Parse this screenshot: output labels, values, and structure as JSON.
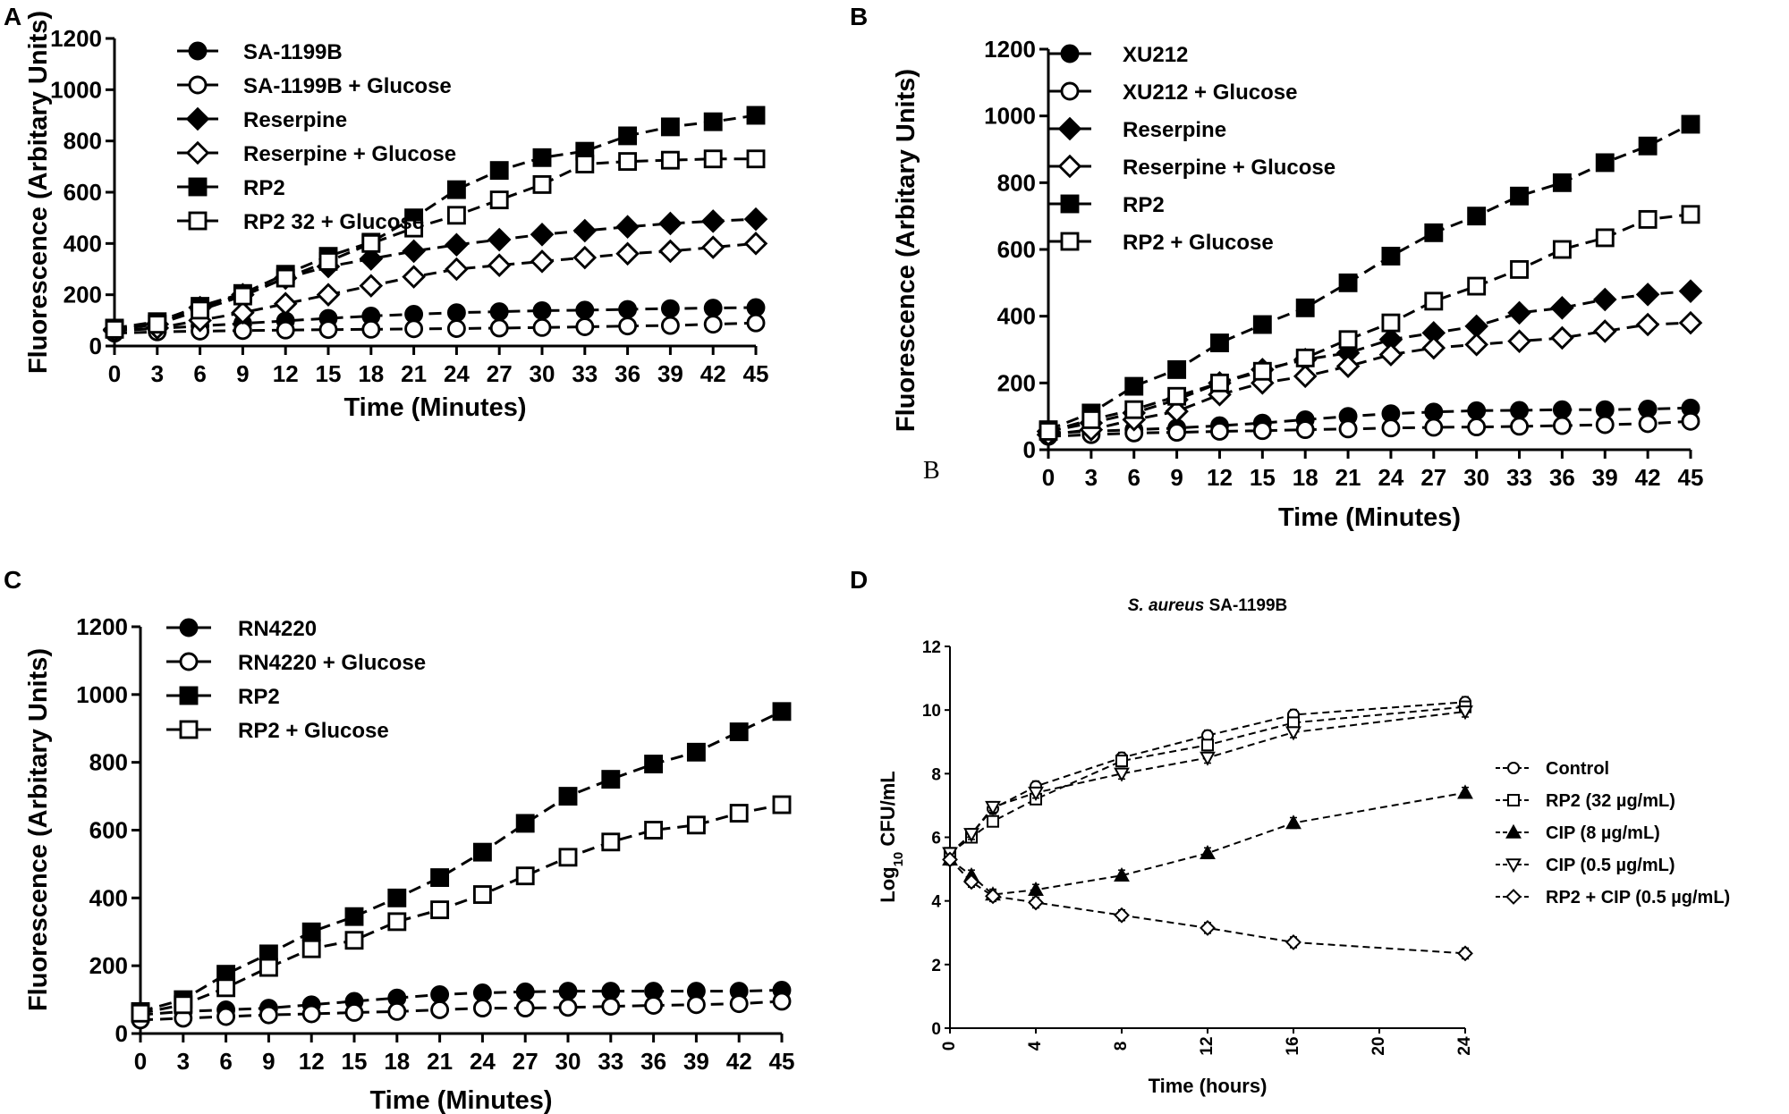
{
  "figure": {
    "panels": [
      "A",
      "B",
      "C",
      "D"
    ],
    "stray_mark_B": "B"
  },
  "chart_data": [
    {
      "panel": "A",
      "type": "line",
      "title": "",
      "xlabel": "Time (Minutes)",
      "ylabel": "Fluorescence (Arbitary Units)",
      "xlim": [
        0,
        45
      ],
      "ylim": [
        0,
        1200
      ],
      "xticks": [
        0,
        3,
        6,
        9,
        12,
        15,
        18,
        21,
        24,
        27,
        30,
        33,
        36,
        39,
        42,
        45
      ],
      "yticks": [
        0,
        200,
        400,
        600,
        800,
        1000,
        1200
      ],
      "x": [
        0,
        3,
        6,
        9,
        12,
        15,
        18,
        21,
        24,
        27,
        30,
        33,
        36,
        39,
        42,
        45
      ],
      "legend_position": "top-left",
      "series": [
        {
          "name": "SA-1199B",
          "marker": "circle",
          "fill": "filled",
          "values": [
            60,
            68,
            78,
            88,
            98,
            108,
            117,
            124,
            130,
            134,
            138,
            140,
            143,
            146,
            148,
            150
          ]
        },
        {
          "name": "SA-1199B + Glucose",
          "marker": "circle",
          "fill": "open",
          "values": [
            50,
            55,
            58,
            60,
            62,
            64,
            65,
            67,
            68,
            70,
            72,
            75,
            78,
            80,
            85,
            90
          ]
        },
        {
          "name": "Reserpine",
          "marker": "diamond",
          "fill": "filled",
          "values": [
            65,
            85,
            150,
            200,
            265,
            310,
            340,
            370,
            395,
            415,
            435,
            450,
            465,
            478,
            487,
            495
          ]
        },
        {
          "name": "Reserpine + Glucose",
          "marker": "diamond",
          "fill": "open",
          "values": [
            60,
            70,
            100,
            130,
            165,
            200,
            235,
            270,
            300,
            315,
            330,
            345,
            360,
            370,
            385,
            400
          ]
        },
        {
          "name": "RP2",
          "marker": "square",
          "fill": "filled",
          "values": [
            70,
            95,
            155,
            205,
            280,
            350,
            405,
            500,
            610,
            685,
            735,
            760,
            820,
            855,
            875,
            900
          ]
        },
        {
          "name": "RP2 32 + Glucose",
          "marker": "square",
          "fill": "open",
          "values": [
            65,
            85,
            140,
            195,
            265,
            330,
            400,
            460,
            510,
            570,
            630,
            710,
            720,
            725,
            730,
            730
          ]
        }
      ]
    },
    {
      "panel": "B",
      "type": "line",
      "title": "",
      "xlabel": "Time (Minutes)",
      "ylabel": "Fluorescence (Arbitary Units)",
      "xlim": [
        0,
        45
      ],
      "ylim": [
        0,
        1200
      ],
      "xticks": [
        0,
        3,
        6,
        9,
        12,
        15,
        18,
        21,
        24,
        27,
        30,
        33,
        36,
        39,
        42,
        45
      ],
      "yticks": [
        0,
        200,
        400,
        600,
        800,
        1000,
        1200
      ],
      "x": [
        0,
        3,
        6,
        9,
        12,
        15,
        18,
        21,
        24,
        27,
        30,
        33,
        36,
        39,
        42,
        45
      ],
      "legend_position": "top-left",
      "series": [
        {
          "name": "XU212",
          "marker": "circle",
          "fill": "filled",
          "values": [
            50,
            55,
            60,
            65,
            72,
            80,
            90,
            100,
            108,
            113,
            117,
            118,
            120,
            120,
            122,
            125
          ]
        },
        {
          "name": "XU212 + Glucose",
          "marker": "circle",
          "fill": "open",
          "values": [
            40,
            45,
            50,
            52,
            55,
            57,
            60,
            62,
            65,
            67,
            68,
            70,
            72,
            75,
            78,
            85
          ]
        },
        {
          "name": "Reserpine",
          "marker": "diamond",
          "fill": "filled",
          "values": [
            55,
            80,
            110,
            150,
            200,
            240,
            270,
            290,
            330,
            350,
            370,
            410,
            425,
            450,
            465,
            475
          ]
        },
        {
          "name": "Reserpine + Glucose",
          "marker": "diamond",
          "fill": "open",
          "values": [
            45,
            60,
            90,
            115,
            165,
            200,
            220,
            250,
            285,
            305,
            315,
            325,
            335,
            355,
            375,
            380
          ]
        },
        {
          "name": "RP2",
          "marker": "square",
          "fill": "filled",
          "values": [
            60,
            110,
            190,
            240,
            320,
            375,
            425,
            500,
            580,
            650,
            700,
            760,
            800,
            860,
            910,
            975
          ]
        },
        {
          "name": "RP2 + Glucose",
          "marker": "square",
          "fill": "open",
          "values": [
            55,
            90,
            120,
            160,
            200,
            235,
            275,
            330,
            380,
            445,
            490,
            540,
            600,
            635,
            690,
            705
          ]
        }
      ]
    },
    {
      "panel": "C",
      "type": "line",
      "title": "",
      "xlabel": "Time (Minutes)",
      "ylabel": "Fluorescence (Arbitary Units)",
      "xlim": [
        0,
        45
      ],
      "ylim": [
        0,
        1200
      ],
      "xticks": [
        0,
        3,
        6,
        9,
        12,
        15,
        18,
        21,
        24,
        27,
        30,
        33,
        36,
        39,
        42,
        45
      ],
      "yticks": [
        0,
        200,
        400,
        600,
        800,
        1000,
        1200
      ],
      "x": [
        0,
        3,
        6,
        9,
        12,
        15,
        18,
        21,
        24,
        27,
        30,
        33,
        36,
        39,
        42,
        45
      ],
      "legend_position": "top-left",
      "series": [
        {
          "name": "RN4220",
          "marker": "circle",
          "fill": "filled",
          "values": [
            55,
            65,
            70,
            75,
            85,
            95,
            105,
            115,
            120,
            123,
            125,
            125,
            125,
            125,
            125,
            128
          ]
        },
        {
          "name": "RN4220 + Glucose",
          "marker": "circle",
          "fill": "open",
          "values": [
            40,
            45,
            50,
            55,
            58,
            62,
            65,
            70,
            75,
            75,
            77,
            80,
            83,
            85,
            88,
            95
          ]
        },
        {
          "name": "RP2",
          "marker": "square",
          "fill": "filled",
          "values": [
            65,
            100,
            175,
            235,
            300,
            345,
            400,
            460,
            535,
            620,
            700,
            750,
            795,
            830,
            890,
            950
          ]
        },
        {
          "name": "RP2 + Glucose",
          "marker": "square",
          "fill": "open",
          "values": [
            60,
            85,
            135,
            195,
            250,
            275,
            330,
            365,
            410,
            465,
            520,
            565,
            600,
            615,
            650,
            675
          ]
        }
      ]
    },
    {
      "panel": "D",
      "type": "line",
      "title": "S. aureus SA-1199B",
      "title_italic": "S. aureus",
      "title_plain": " SA-1199B",
      "xlabel": "Time (hours)",
      "ylabel": "Log10 CFU/mL",
      "ylabel_parts": [
        "Log",
        "10",
        " CFU/mL"
      ],
      "xlim": [
        0,
        24
      ],
      "ylim": [
        0,
        12
      ],
      "xticks": [
        0,
        4,
        8,
        12,
        16,
        20,
        24
      ],
      "yticks": [
        0,
        2,
        4,
        6,
        8,
        10,
        12
      ],
      "x": [
        0,
        1,
        2,
        4,
        8,
        12,
        16,
        24
      ],
      "legend_position": "right",
      "series": [
        {
          "name": "Control",
          "marker": "circle",
          "fill": "open",
          "values": [
            5.5,
            6.1,
            6.9,
            7.6,
            8.5,
            9.2,
            9.85,
            10.25
          ]
        },
        {
          "name": "RP2 (32 µg/mL)",
          "marker": "square",
          "fill": "open",
          "values": [
            5.5,
            6.0,
            6.5,
            7.2,
            8.4,
            8.9,
            9.6,
            10.1
          ]
        },
        {
          "name": "CIP (8 µg/mL)",
          "marker": "triangle-up",
          "fill": "filled",
          "values": [
            5.3,
            4.8,
            4.2,
            4.35,
            4.8,
            5.5,
            6.45,
            7.4
          ]
        },
        {
          "name": "CIP (0.5 µg/mL)",
          "marker": "triangle-down",
          "fill": "open",
          "values": [
            5.5,
            6.1,
            6.95,
            7.4,
            8.0,
            8.5,
            9.3,
            9.95
          ]
        },
        {
          "name": "RP2 + CIP (0.5 µg/mL)",
          "marker": "diamond",
          "fill": "open",
          "values": [
            5.3,
            4.6,
            4.15,
            3.95,
            3.55,
            3.15,
            2.7,
            2.35
          ]
        }
      ]
    }
  ]
}
